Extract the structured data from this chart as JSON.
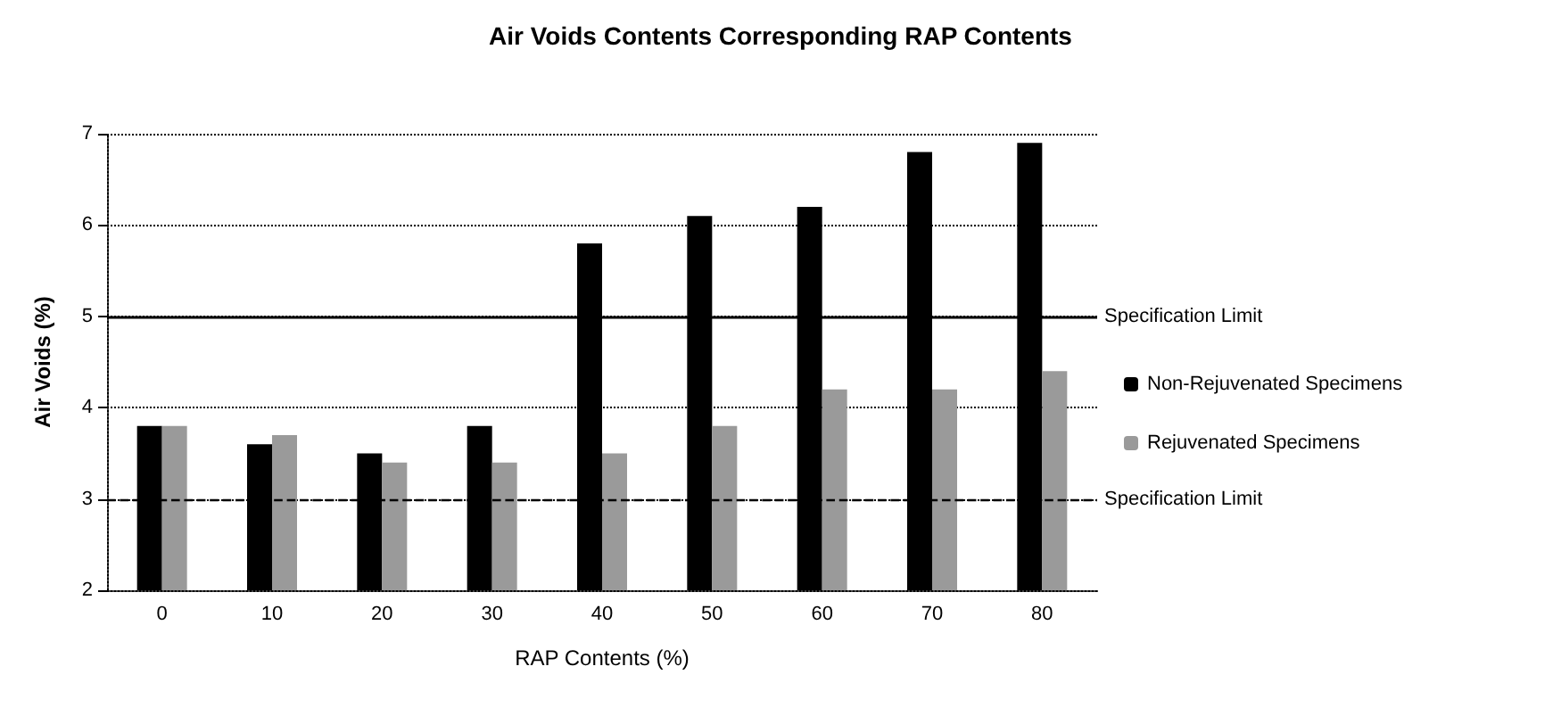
{
  "chart_data": {
    "type": "bar",
    "title": "Air Voids Contents Corresponding RAP Contents",
    "xlabel": "RAP Contents (%)",
    "ylabel": "Air Voids (%)",
    "categories": [
      "0",
      "10",
      "20",
      "30",
      "40",
      "50",
      "60",
      "70",
      "80"
    ],
    "series": [
      {
        "name": "Non-Rejuvenated Specimens",
        "color": "#000000",
        "values": [
          3.8,
          3.6,
          3.5,
          3.8,
          5.8,
          6.1,
          6.2,
          6.8,
          6.9
        ]
      },
      {
        "name": "Rejuvenated Specimens",
        "color": "#9a9a9a",
        "values": [
          3.8,
          3.7,
          3.4,
          3.4,
          3.5,
          3.8,
          4.2,
          4.2,
          4.4
        ]
      }
    ],
    "ylim": [
      2,
      7
    ],
    "yticks": [
      2,
      3,
      4,
      5,
      6,
      7
    ],
    "grid": "y",
    "legend": "right",
    "ref_lines": [
      {
        "axis": "y",
        "value": 5,
        "label": "Specification Limit",
        "color": "#000000",
        "line_style": "solid"
      },
      {
        "axis": "y",
        "value": 3,
        "label": "Specification Limit",
        "color": "#000000",
        "line_style": "dashed"
      }
    ]
  }
}
